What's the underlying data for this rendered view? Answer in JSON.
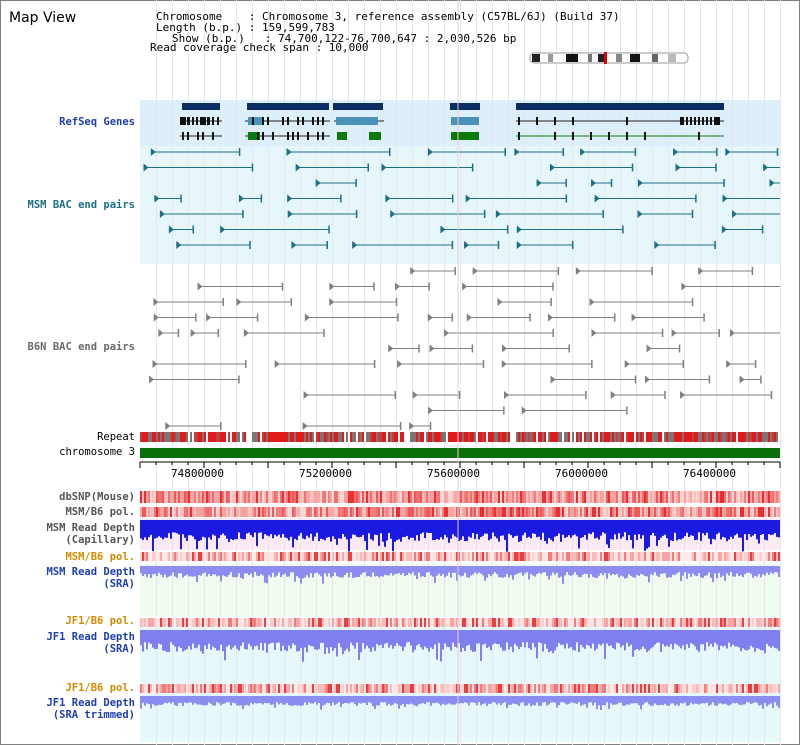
{
  "title": "Map View",
  "info": {
    "chromosome": "Chromosome    : Chromosome 3, reference assembly (C57BL/6J) (Build 37)",
    "length": "Length (b.p.) : 159,599,783",
    "show": "Show (b.p.)   : 74,700,122-76,700,647 : 2,000,526 bp",
    "coverage": "Read coverage check span : 10,000"
  },
  "tracks": {
    "refseq": "RefSeq Genes",
    "msm_bac": "MSM BAC end pairs",
    "b6n_bac": "B6N BAC end pairs",
    "repeat": "Repeat",
    "chromosome": "chromosome 3",
    "dbsnp": "dbSNP(Mouse)",
    "msm_pol": "MSM/B6 pol.",
    "msm_depth_cap": "MSM Read Depth\n(Capillary)",
    "msm_pol_sra": "MSM/B6 pol.",
    "msm_depth_sra": "MSM Read Depth\n(SRA)",
    "jf1_pol": "JF1/B6 pol.",
    "jf1_depth": "JF1 Read Depth\n(SRA)",
    "jf1_pol_trim": "JF1/B6 pol.",
    "jf1_depth_trim": "JF1 Read Depth\n(SRA trimmed)"
  },
  "axis": {
    "ticks": [
      "74800000",
      "75200000",
      "75600000",
      "76000000",
      "76400000"
    ]
  },
  "colors": {
    "refseq_bg": "#dceffa",
    "bac_bg": "#e6f6fa",
    "gene_dark": "#0d2e63",
    "gene_mid": "#4a93b8",
    "gene_green": "#0a7a0a",
    "msm_pair": "#1b6f86",
    "b6n_pair": "#808080",
    "chrom": "#0a6e0a",
    "depth_blue": "#1a1ae0",
    "depth_light": "#7f7fef"
  }
}
